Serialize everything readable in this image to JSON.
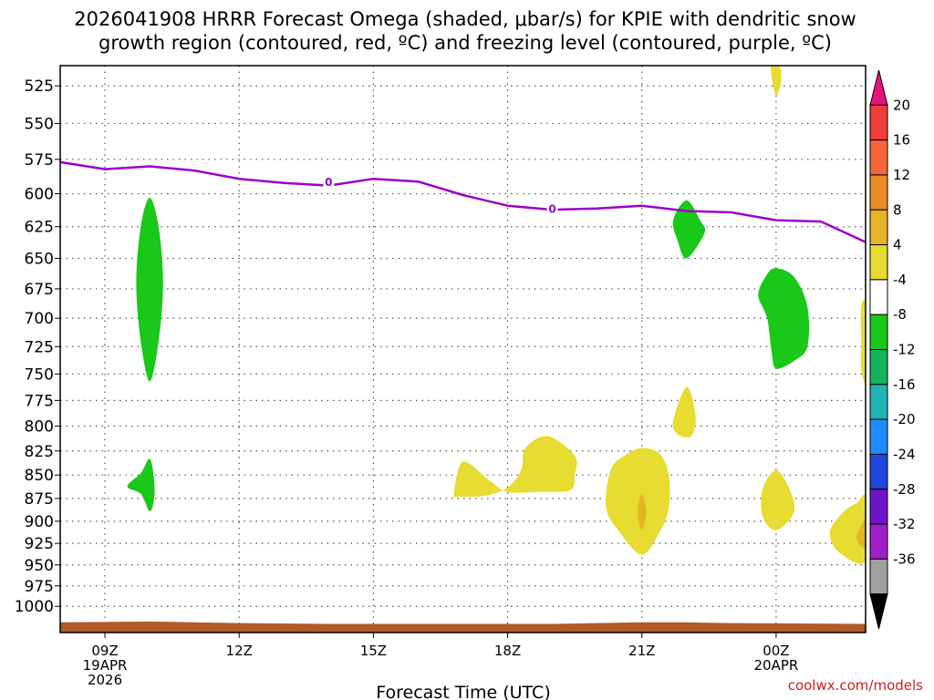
{
  "chart_data": {
    "type": "heatmap",
    "title_line1": "2026041908 HRRR Forecast Omega (shaded, μbar/s) for KPIE with dendritic snow",
    "title_line2": "growth region (contoured, red, ºC) and freezing level (contoured, purple, ºC)",
    "xlabel": "Forecast Time (UTC)",
    "credit": "coolwx.com/models",
    "x_range_hours": [
      8,
      26
    ],
    "x_ticks": [
      {
        "hour": 9,
        "lines": [
          "09Z",
          "19APR",
          "2026"
        ]
      },
      {
        "hour": 12,
        "lines": [
          "12Z"
        ]
      },
      {
        "hour": 15,
        "lines": [
          "15Z"
        ]
      },
      {
        "hour": 18,
        "lines": [
          "18Z"
        ]
      },
      {
        "hour": 21,
        "lines": [
          "21Z"
        ]
      },
      {
        "hour": 24,
        "lines": [
          "00Z",
          "20APR"
        ]
      }
    ],
    "y_axis": "pressure (mb), log scale",
    "y_range": [
      512,
      1033
    ],
    "y_ticks": [
      525,
      550,
      575,
      600,
      625,
      650,
      675,
      700,
      725,
      750,
      775,
      800,
      825,
      850,
      875,
      900,
      925,
      950,
      975,
      1000
    ],
    "colorbar": {
      "labels": [
        "20",
        "16",
        "12",
        "8",
        "4",
        "-4",
        "-8",
        "-12",
        "-16",
        "-20",
        "-24",
        "-28",
        "-32",
        "-36"
      ],
      "bins": [
        {
          "color": "#e8127d"
        },
        {
          "color": "#f03c3c"
        },
        {
          "color": "#f5663c"
        },
        {
          "color": "#ec8c28"
        },
        {
          "color": "#e6b428"
        },
        {
          "color": "#e6dc32"
        },
        {
          "color": "#ffffff"
        },
        {
          "color": "#19c819"
        },
        {
          "color": "#14b45a"
        },
        {
          "color": "#1eb4b4"
        },
        {
          "color": "#1e8cff"
        },
        {
          "color": "#1e46dc"
        },
        {
          "color": "#6e14c8"
        },
        {
          "color": "#a01ec8"
        },
        {
          "color": "#a0a0a0"
        },
        {
          "color": "#000000"
        }
      ]
    },
    "freezing_level": {
      "color": "#9b00c8",
      "label": "0",
      "label_points": [
        [
          14.0,
          591
        ],
        [
          19.0,
          611
        ]
      ],
      "points": [
        [
          8.0,
          577
        ],
        [
          9.0,
          582
        ],
        [
          10.0,
          580
        ],
        [
          11.0,
          583
        ],
        [
          12.0,
          589
        ],
        [
          13.0,
          592
        ],
        [
          14.0,
          594
        ],
        [
          15.0,
          589
        ],
        [
          16.0,
          591
        ],
        [
          17.0,
          601
        ],
        [
          18.0,
          609
        ],
        [
          19.0,
          612
        ],
        [
          20.0,
          611
        ],
        [
          21.0,
          609
        ],
        [
          22.0,
          613
        ],
        [
          23.0,
          614
        ],
        [
          24.0,
          620
        ],
        [
          25.0,
          621
        ],
        [
          26.0,
          637
        ]
      ]
    },
    "omega_regions": [
      {
        "omega_bin": "-8 to -4",
        "color": "#19c819",
        "polygon": [
          [
            10.0,
            603
          ],
          [
            10.2,
            625
          ],
          [
            10.3,
            670
          ],
          [
            10.2,
            720
          ],
          [
            10.0,
            757
          ],
          [
            9.8,
            720
          ],
          [
            9.7,
            670
          ],
          [
            9.8,
            625
          ]
        ]
      },
      {
        "omega_bin": "-8 to -4",
        "color": "#19c819",
        "polygon": [
          [
            10.0,
            833
          ],
          [
            10.1,
            855
          ],
          [
            10.1,
            875
          ],
          [
            10.0,
            889
          ],
          [
            9.8,
            870
          ],
          [
            9.5,
            862
          ],
          [
            9.8,
            848
          ]
        ]
      },
      {
        "omega_bin": "-8 to -4",
        "color": "#19c819",
        "polygon": [
          [
            22.0,
            605
          ],
          [
            22.3,
            620
          ],
          [
            22.4,
            630
          ],
          [
            22.0,
            650
          ],
          [
            21.8,
            636
          ],
          [
            21.7,
            620
          ]
        ]
      },
      {
        "omega_bin": "-8 to -4",
        "color": "#19c819",
        "polygon": [
          [
            24.0,
            658
          ],
          [
            24.4,
            665
          ],
          [
            24.7,
            690
          ],
          [
            24.7,
            725
          ],
          [
            24.4,
            738
          ],
          [
            24.0,
            745
          ],
          [
            23.9,
            730
          ],
          [
            23.8,
            700
          ],
          [
            23.6,
            680
          ],
          [
            23.8,
            663
          ]
        ]
      },
      {
        "omega_bin": "4 to 8",
        "color": "#e6dc32",
        "polygon": [
          [
            23.9,
            510
          ],
          [
            24.1,
            514
          ],
          [
            24.1,
            524
          ],
          [
            24.0,
            531
          ],
          [
            23.9,
            520
          ]
        ]
      },
      {
        "omega_bin": "4 to 8",
        "color": "#e6dc32",
        "polygon": [
          [
            22.0,
            762
          ],
          [
            22.2,
            790
          ],
          [
            22.1,
            810
          ],
          [
            21.8,
            808
          ],
          [
            21.7,
            795
          ]
        ]
      },
      {
        "omega_bin": "4 to 8",
        "color": "#e6dc32",
        "polygon": [
          [
            17.0,
            836
          ],
          [
            17.6,
            856
          ],
          [
            18.0,
            868
          ],
          [
            18.7,
            868
          ],
          [
            19.4,
            866
          ],
          [
            19.5,
            850
          ],
          [
            19.5,
            830
          ],
          [
            18.9,
            810
          ],
          [
            18.4,
            822
          ],
          [
            18.3,
            845
          ],
          [
            18.0,
            863
          ],
          [
            17.5,
            872
          ],
          [
            16.9,
            873
          ],
          [
            16.8,
            870
          ]
        ]
      },
      {
        "omega_bin": "4 to 8",
        "color": "#e6dc32",
        "polygon": [
          [
            21.0,
            822
          ],
          [
            21.4,
            828
          ],
          [
            21.6,
            850
          ],
          [
            21.6,
            885
          ],
          [
            21.4,
            912
          ],
          [
            21.0,
            938
          ],
          [
            20.5,
            912
          ],
          [
            20.2,
            885
          ],
          [
            20.3,
            845
          ],
          [
            20.6,
            830
          ]
        ]
      },
      {
        "omega_bin": "4 to 8",
        "color": "#e6dc32",
        "polygon": [
          [
            24.0,
            845
          ],
          [
            24.3,
            865
          ],
          [
            24.4,
            890
          ],
          [
            24.0,
            910
          ],
          [
            23.7,
            895
          ],
          [
            23.7,
            865
          ]
        ]
      },
      {
        "omega_bin": "4 to 8",
        "color": "#e6dc32",
        "polygon": [
          [
            26.0,
            875
          ],
          [
            26.0,
            945
          ],
          [
            25.4,
            935
          ],
          [
            25.2,
            912
          ],
          [
            25.5,
            890
          ],
          [
            25.8,
            880
          ]
        ]
      },
      {
        "omega_bin": "4 to 8",
        "color": "#e6dc32",
        "polygon": [
          [
            25.9,
            690
          ],
          [
            26.0,
            690
          ],
          [
            26.0,
            755
          ],
          [
            25.9,
            745
          ],
          [
            25.9,
            720
          ]
        ]
      },
      {
        "omega_bin": "8 to 12",
        "color": "#e6b428",
        "polygon": [
          [
            21.0,
            870
          ],
          [
            21.1,
            890
          ],
          [
            21.0,
            910
          ],
          [
            20.9,
            890
          ]
        ]
      },
      {
        "omega_bin": "8 to 12",
        "color": "#e6b428",
        "polygon": [
          [
            25.9,
            905
          ],
          [
            26.0,
            898
          ],
          [
            26.0,
            930
          ],
          [
            25.8,
            920
          ]
        ]
      }
    ],
    "terrain": {
      "color": "#b05a2a",
      "polygon": [
        [
          8.0,
          1020
        ],
        [
          10.0,
          1019
        ],
        [
          12.0,
          1021
        ],
        [
          14.0,
          1022
        ],
        [
          19.0,
          1022
        ],
        [
          20.0,
          1021
        ],
        [
          21.0,
          1020
        ],
        [
          22.0,
          1020
        ],
        [
          23.0,
          1021
        ],
        [
          26.0,
          1022
        ],
        [
          26.0,
          1033
        ],
        [
          8.0,
          1033
        ]
      ]
    }
  }
}
